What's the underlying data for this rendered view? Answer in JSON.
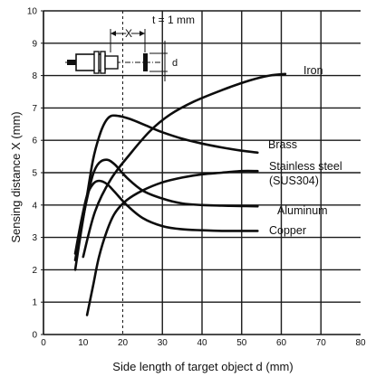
{
  "chart_data": {
    "type": "line",
    "title": "",
    "xlabel": "Side length of target object d (mm)",
    "ylabel": "Sensing distance X (mm)",
    "xlim": [
      0,
      80
    ],
    "ylim": [
      0,
      10
    ],
    "x_ticks": [
      "0",
      "10",
      "20",
      "30",
      "40",
      "50",
      "60",
      "70",
      "80"
    ],
    "y_ticks": [
      "0",
      "1",
      "2",
      "3",
      "4",
      "5",
      "6",
      "7",
      "8",
      "9",
      "10"
    ],
    "grid": true,
    "inset_label": "t = 1 mm",
    "inset_x_symbol": "X",
    "inset_d_symbol": "d",
    "series": [
      {
        "name": "Iron",
        "x": [
          10,
          13,
          17,
          22,
          27,
          32,
          38,
          45,
          52,
          57,
          61
        ],
        "y": [
          2.4,
          3.8,
          4.8,
          5.6,
          6.3,
          6.8,
          7.2,
          7.55,
          7.85,
          8.0,
          8.05
        ]
      },
      {
        "name": "Brass",
        "x": [
          8,
          9.5,
          11,
          12.5,
          14,
          15.5,
          17,
          19,
          22,
          26,
          30,
          35,
          40,
          45,
          50,
          54
        ],
        "y": [
          2.0,
          3.2,
          4.3,
          5.4,
          6.1,
          6.55,
          6.75,
          6.75,
          6.65,
          6.45,
          6.25,
          6.05,
          5.9,
          5.78,
          5.68,
          5.62
        ]
      },
      {
        "name": "Stainless steel (SUS304)",
        "x": [
          11,
          12.5,
          14,
          16,
          18,
          21,
          25,
          30,
          35,
          40,
          45,
          50,
          54
        ],
        "y": [
          0.6,
          1.5,
          2.4,
          3.2,
          3.75,
          4.15,
          4.45,
          4.7,
          4.85,
          4.95,
          5.0,
          5.05,
          5.05
        ]
      },
      {
        "name": "Aluminum",
        "x": [
          8,
          9.5,
          11,
          12.5,
          14,
          16,
          18,
          21,
          25,
          30,
          35,
          40,
          45,
          50,
          54
        ],
        "y": [
          2.3,
          3.3,
          4.2,
          4.95,
          5.3,
          5.4,
          5.25,
          4.85,
          4.45,
          4.2,
          4.05,
          4.0,
          3.98,
          3.97,
          3.96
        ]
      },
      {
        "name": "Copper",
        "x": [
          8,
          9.5,
          11,
          12.5,
          14,
          16,
          18,
          21,
          25,
          30,
          35,
          40,
          45,
          50,
          54
        ],
        "y": [
          2.5,
          3.5,
          4.3,
          4.65,
          4.75,
          4.65,
          4.4,
          4.0,
          3.6,
          3.35,
          3.25,
          3.22,
          3.2,
          3.2,
          3.2
        ]
      }
    ],
    "series_labels": {
      "iron": "Iron",
      "brass": "Brass",
      "stainless_line1": "Stainless steel",
      "stainless_line2": "(SUS304)",
      "aluminum": "Aluminum",
      "copper": "Copper"
    }
  }
}
